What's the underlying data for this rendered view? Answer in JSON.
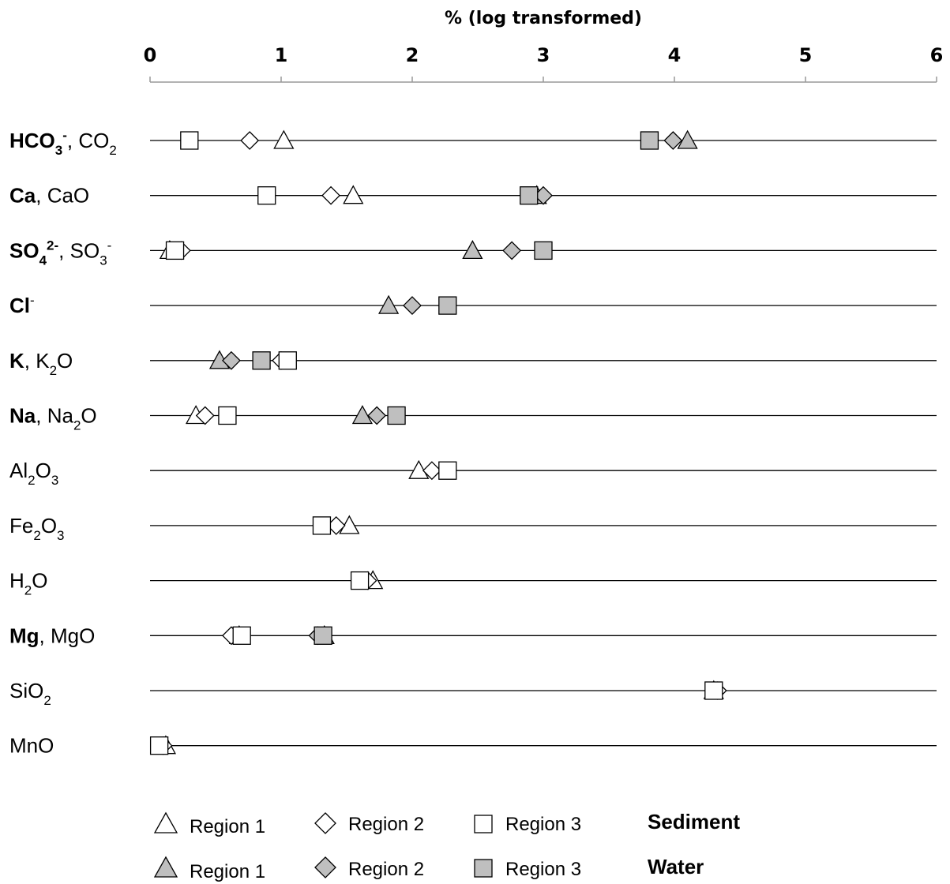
{
  "chart_data": {
    "type": "scatter",
    "xlabel": "% (log transformed)",
    "xlim": [
      0,
      6
    ],
    "xticks": [
      "0",
      "1",
      "2",
      "3",
      "4",
      "5",
      "6"
    ],
    "grid": false,
    "legend_position": "bottom",
    "categories": [
      {
        "id": "hco3",
        "parts": [
          {
            "t": "HCO",
            "b": true
          },
          {
            "t": "3",
            "b": true,
            "sub": true
          },
          {
            "t": "-",
            "b": true,
            "sup": true
          },
          {
            "t": ", CO"
          },
          {
            "t": "2",
            "sub": true
          }
        ]
      },
      {
        "id": "ca",
        "parts": [
          {
            "t": "Ca",
            "b": true
          },
          {
            "t": ", CaO"
          }
        ]
      },
      {
        "id": "so4",
        "parts": [
          {
            "t": "SO",
            "b": true
          },
          {
            "t": "4",
            "b": true,
            "sub": true
          },
          {
            "t": "2-",
            "b": true,
            "sup": true
          },
          {
            "t": ", SO"
          },
          {
            "t": "3",
            "sub": true
          },
          {
            "t": "-",
            "sup": true
          }
        ]
      },
      {
        "id": "cl",
        "parts": [
          {
            "t": "Cl",
            "b": true
          },
          {
            "t": "-",
            "sup": true
          }
        ]
      },
      {
        "id": "k",
        "parts": [
          {
            "t": "K",
            "b": true
          },
          {
            "t": ", K"
          },
          {
            "t": "2",
            "sub": true
          },
          {
            "t": "O"
          }
        ]
      },
      {
        "id": "na",
        "parts": [
          {
            "t": "Na",
            "b": true
          },
          {
            "t": ", Na"
          },
          {
            "t": "2",
            "sub": true
          },
          {
            "t": "O"
          }
        ]
      },
      {
        "id": "al2o3",
        "parts": [
          {
            "t": "Al"
          },
          {
            "t": "2",
            "sub": true
          },
          {
            "t": "O"
          },
          {
            "t": "3",
            "sub": true
          }
        ]
      },
      {
        "id": "fe2o3",
        "parts": [
          {
            "t": "Fe"
          },
          {
            "t": "2",
            "sub": true
          },
          {
            "t": "O"
          },
          {
            "t": "3",
            "sub": true
          }
        ]
      },
      {
        "id": "h2o",
        "parts": [
          {
            "t": "H"
          },
          {
            "t": "2",
            "sub": true
          },
          {
            "t": "O"
          }
        ]
      },
      {
        "id": "mg",
        "parts": [
          {
            "t": "Mg",
            "b": true
          },
          {
            "t": ", MgO"
          }
        ]
      },
      {
        "id": "sio2",
        "parts": [
          {
            "t": "SiO"
          },
          {
            "t": "2",
            "sub": true
          }
        ]
      },
      {
        "id": "mno",
        "parts": [
          {
            "t": "MnO"
          }
        ]
      }
    ],
    "series": [
      {
        "name": "Region 1",
        "group": "Sediment",
        "marker": "triangle",
        "fill": "#ffffff",
        "values": [
          1.02,
          1.55,
          0.15,
          null,
          null,
          0.35,
          2.05,
          1.52,
          1.7,
          0.68,
          4.3,
          0.12
        ]
      },
      {
        "name": "Region 2",
        "group": "Sediment",
        "marker": "diamond",
        "fill": "#ffffff",
        "values": [
          0.76,
          1.38,
          0.24,
          null,
          1.0,
          0.42,
          2.15,
          1.42,
          1.66,
          0.62,
          4.33,
          0.1
        ]
      },
      {
        "name": "Region 3",
        "group": "Sediment",
        "marker": "square",
        "fill": "#ffffff",
        "values": [
          0.3,
          0.89,
          0.19,
          null,
          1.05,
          0.59,
          2.27,
          1.31,
          1.6,
          0.7,
          4.3,
          0.07
        ]
      },
      {
        "name": "Region 1",
        "group": "Water",
        "marker": "triangle",
        "fill": "#bfbfbf",
        "values": [
          4.1,
          2.95,
          2.46,
          1.82,
          0.53,
          1.62,
          null,
          null,
          null,
          1.33,
          null,
          null
        ]
      },
      {
        "name": "Region 2",
        "group": "Water",
        "marker": "diamond",
        "fill": "#bfbfbf",
        "values": [
          3.99,
          3.0,
          2.76,
          2.0,
          0.62,
          1.73,
          null,
          null,
          null,
          1.28,
          null,
          null
        ]
      },
      {
        "name": "Region 3",
        "group": "Water",
        "marker": "square",
        "fill": "#bfbfbf",
        "values": [
          3.81,
          2.89,
          3.0,
          2.27,
          0.85,
          1.88,
          null,
          null,
          null,
          1.32,
          null,
          null
        ]
      }
    ]
  },
  "legend": {
    "sediment_label": "Sediment",
    "water_label": "Water",
    "sediment_entries": [
      "Region 1",
      "Region 2",
      "Region 3"
    ],
    "water_entries": [
      "Region 1",
      "Region 2",
      "Region 3"
    ]
  }
}
